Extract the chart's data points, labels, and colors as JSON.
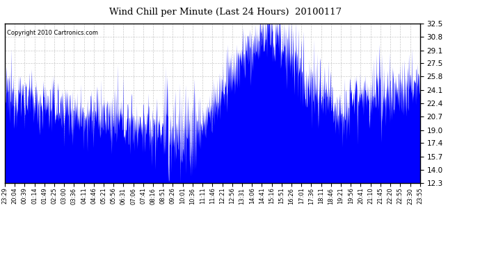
{
  "title": "Wind Chill per Minute (Last 24 Hours)  20100117",
  "copyright_text": "Copyright 2010 Cartronics.com",
  "line_color": "#0000FF",
  "background_color": "#FFFFFF",
  "plot_bg_color": "#FFFFFF",
  "grid_color": "#BBBBBB",
  "yticks": [
    12.3,
    14.0,
    15.7,
    17.4,
    19.0,
    20.7,
    22.4,
    24.1,
    25.8,
    27.5,
    29.1,
    30.8,
    32.5
  ],
  "ylim": [
    12.3,
    32.5
  ],
  "xtick_labels": [
    "23:29",
    "20:04",
    "00:39",
    "01:14",
    "01:49",
    "02:25",
    "03:00",
    "03:36",
    "04:11",
    "04:46",
    "05:21",
    "05:56",
    "06:31",
    "07:06",
    "07:41",
    "08:16",
    "08:51",
    "09:26",
    "10:01",
    "10:36",
    "11:11",
    "11:46",
    "12:21",
    "12:56",
    "13:31",
    "14:06",
    "14:41",
    "15:16",
    "15:51",
    "16:26",
    "17:01",
    "17:36",
    "18:11",
    "18:46",
    "19:21",
    "19:56",
    "20:41",
    "21:10",
    "21:45",
    "22:20",
    "22:55",
    "23:30",
    "23:55"
  ],
  "n_points": 1440
}
